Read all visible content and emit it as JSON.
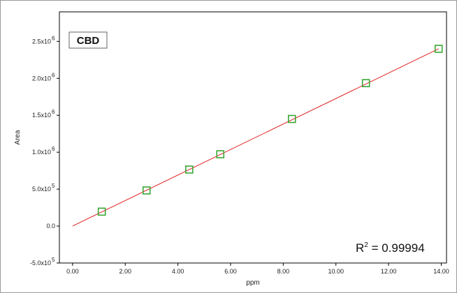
{
  "chart_data": {
    "type": "scatter",
    "compound_label": "CBD",
    "xlabel": "ppm",
    "ylabel": "Area",
    "xlim": [
      -0.5,
      14.2
    ],
    "ylim": [
      -500000,
      2900000
    ],
    "x_ticks": [
      "0.00",
      "2.00",
      "4.00",
      "6.00",
      "8.00",
      "10.00",
      "12.00",
      "14.00"
    ],
    "x_tick_values": [
      0,
      2,
      4,
      6,
      8,
      10,
      12,
      14
    ],
    "y_ticks": [
      {
        "value": -500000,
        "mantissa": "-5.0x10",
        "exp": "5"
      },
      {
        "value": 0,
        "mantissa": "0.0",
        "exp": ""
      },
      {
        "value": 500000,
        "mantissa": "5.0x10",
        "exp": "5"
      },
      {
        "value": 1000000,
        "mantissa": "1.0x10",
        "exp": "6"
      },
      {
        "value": 1500000,
        "mantissa": "1.5x10",
        "exp": "6"
      },
      {
        "value": 2000000,
        "mantissa": "2.0x10",
        "exp": "6"
      },
      {
        "value": 2500000,
        "mantissa": "2.5x10",
        "exp": "6"
      }
    ],
    "series": [
      {
        "x": [
          1.11,
          2.81,
          4.43,
          5.61,
          8.33,
          11.14,
          13.9
        ],
        "y": [
          195000,
          482000,
          765000,
          972000,
          1450000,
          1935000,
          2400000
        ]
      }
    ],
    "fit_line": {
      "x": [
        0,
        13.9
      ],
      "y": [
        0,
        2400000
      ]
    },
    "r_squared_prefix": "R",
    "r_squared_sup": "2",
    "r_squared_value": " = 0.99994",
    "colors": {
      "marker": "#3aa635",
      "fit": "#e02020",
      "axis": "#000000"
    }
  }
}
